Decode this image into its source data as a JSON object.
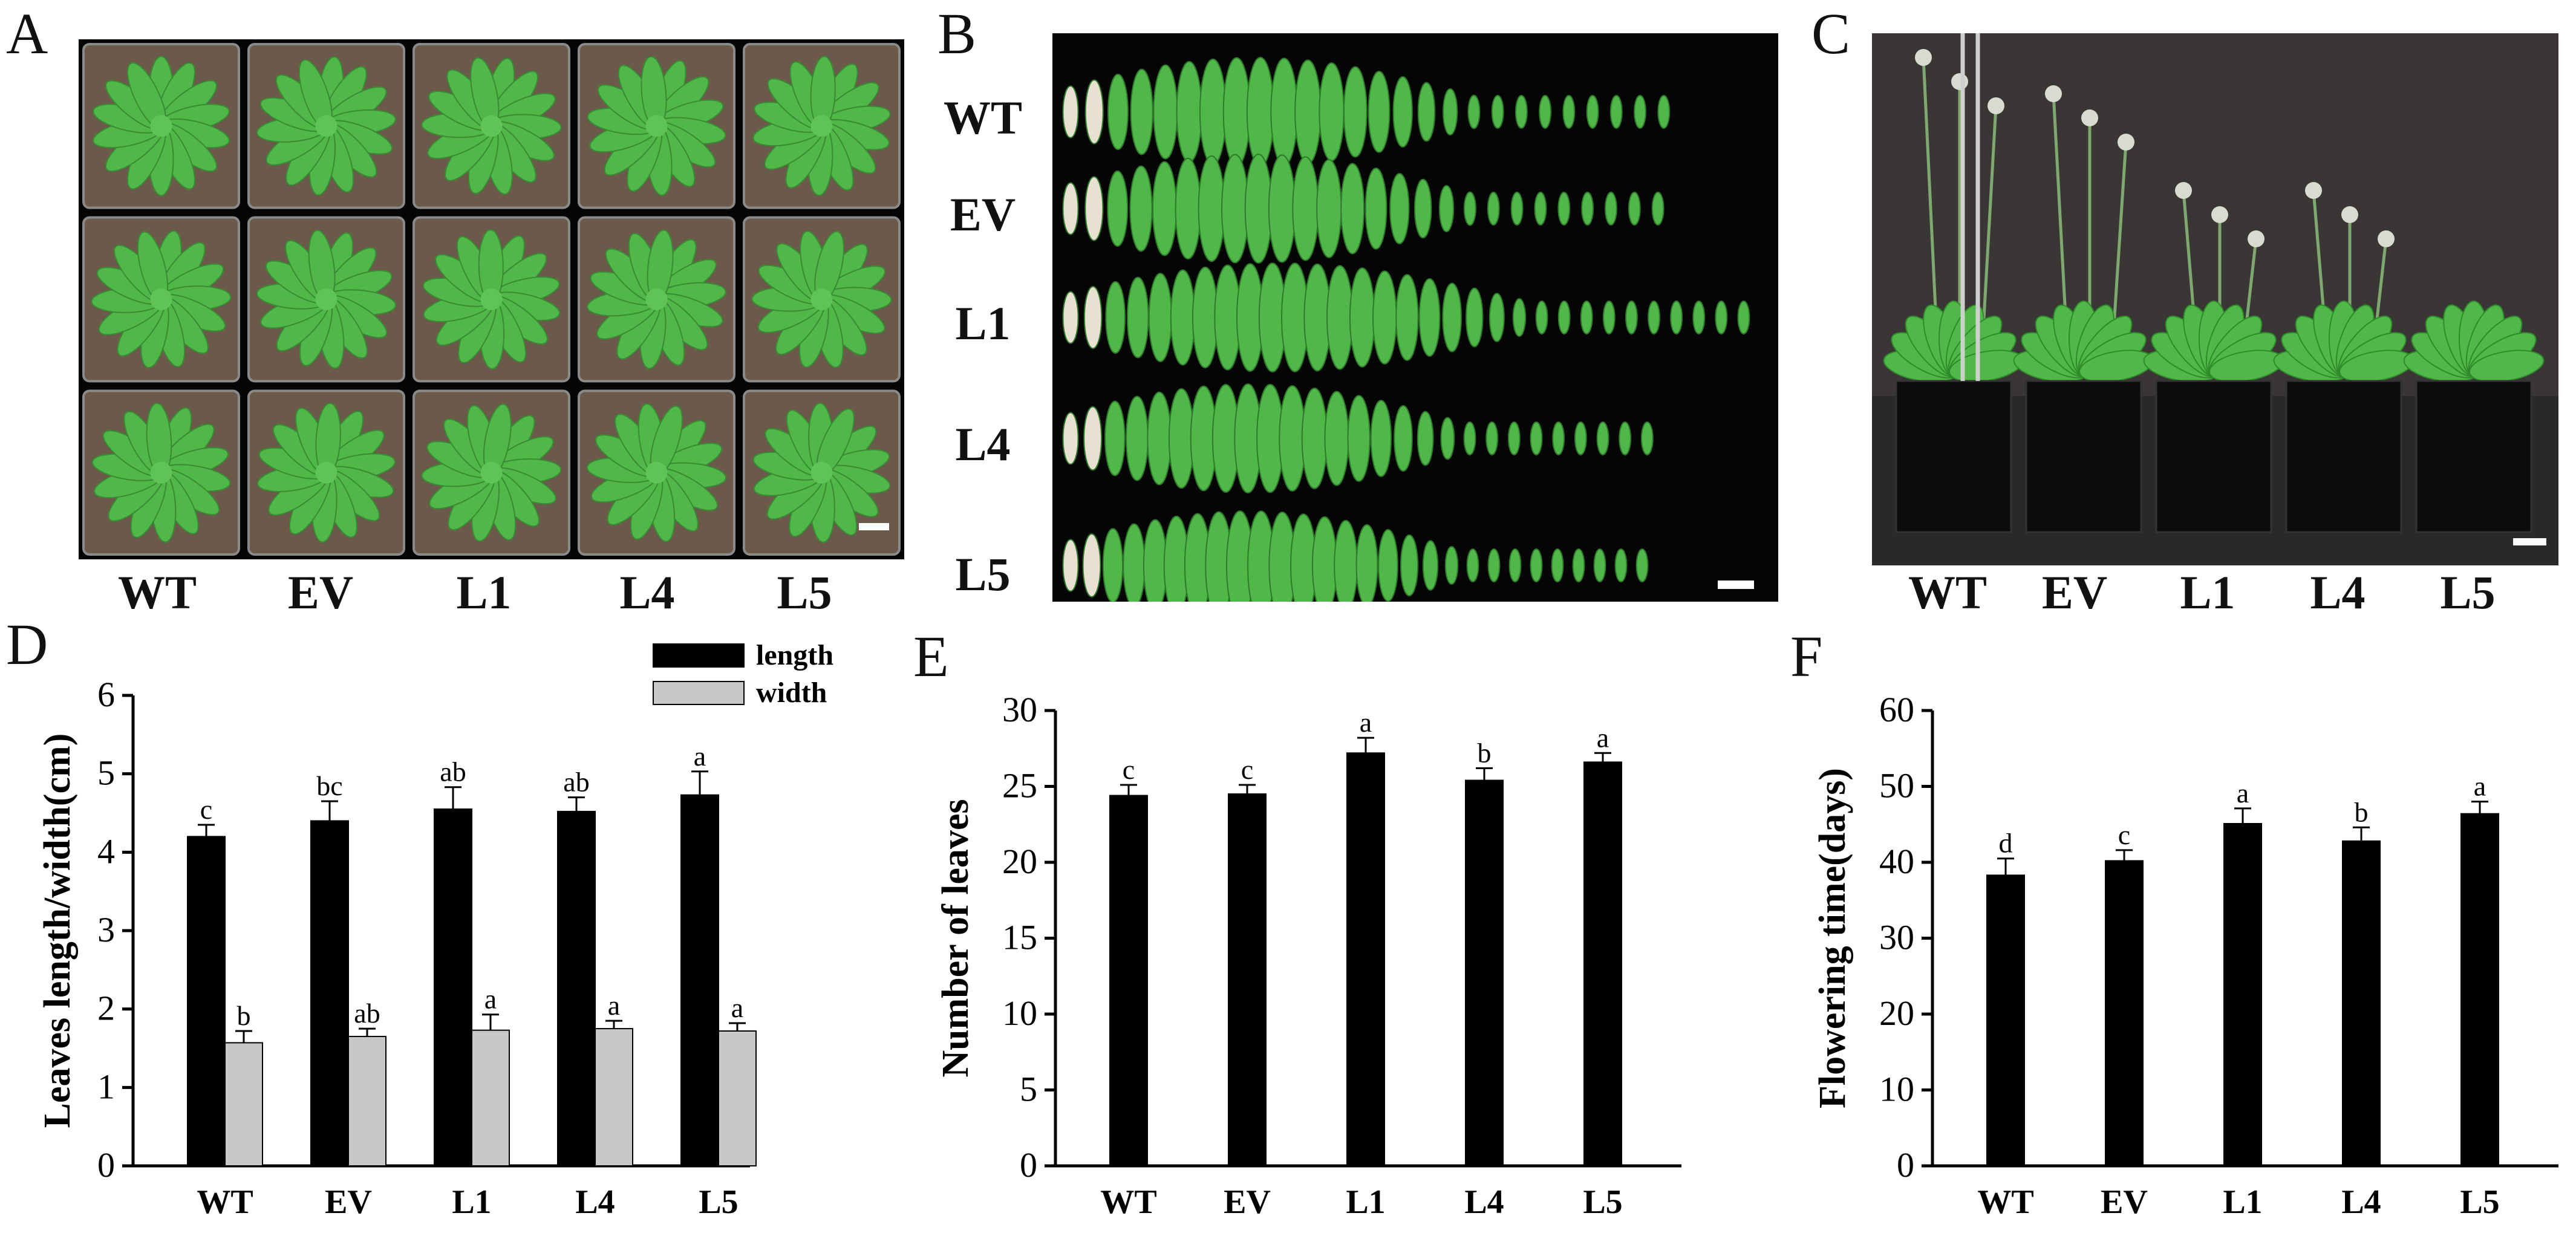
{
  "panels": {
    "A": "A",
    "B": "B",
    "C": "C",
    "D": "D",
    "E": "E",
    "F": "F"
  },
  "genotypes": [
    "WT",
    "EV",
    "L1",
    "L4",
    "L5"
  ],
  "colors": {
    "length_bar": "#000000",
    "width_bar": "#c8c8c8",
    "photo_bg": "#050505",
    "leaf_green": "#4fb848",
    "soil": "#6b5a4a",
    "backdrop": "#3a3636"
  },
  "chart_data": [
    {
      "panel": "D",
      "type": "bar",
      "categories": [
        "WT",
        "EV",
        "L1",
        "L4",
        "L5"
      ],
      "series": [
        {
          "name": "length",
          "values": [
            4.2,
            4.4,
            4.55,
            4.52,
            4.73
          ],
          "errors": [
            0.15,
            0.25,
            0.28,
            0.18,
            0.3
          ],
          "letters": [
            "c",
            "bc",
            "ab",
            "ab",
            "a"
          ]
        },
        {
          "name": "width",
          "values": [
            1.57,
            1.65,
            1.73,
            1.75,
            1.72
          ],
          "errors": [
            0.15,
            0.1,
            0.2,
            0.1,
            0.1
          ],
          "letters": [
            "b",
            "ab",
            "a",
            "a",
            "a"
          ]
        }
      ],
      "ylabel": "Leaves length/width(cm)",
      "ylim": [
        0,
        6
      ],
      "yticks": [
        0,
        1,
        2,
        3,
        4,
        5,
        6
      ],
      "legend_position": "top-right",
      "grid": false
    },
    {
      "panel": "E",
      "type": "bar",
      "categories": [
        "WT",
        "EV",
        "L1",
        "L4",
        "L5"
      ],
      "values": [
        24.4,
        24.5,
        27.2,
        25.4,
        26.6
      ],
      "errors": [
        0.7,
        0.6,
        1.0,
        0.8,
        0.6
      ],
      "letters": [
        "c",
        "c",
        "a",
        "b",
        "a"
      ],
      "ylabel": "Number of leaves",
      "ylim": [
        0,
        30
      ],
      "yticks": [
        0,
        5,
        10,
        15,
        20,
        25,
        30
      ],
      "grid": false
    },
    {
      "panel": "F",
      "type": "bar",
      "categories": [
        "WT",
        "EV",
        "L1",
        "L4",
        "L5"
      ],
      "values": [
        38.3,
        40.2,
        45.1,
        42.8,
        46.4
      ],
      "errors": [
        2.2,
        1.4,
        2.0,
        1.8,
        1.6
      ],
      "letters": [
        "d",
        "c",
        "a",
        "b",
        "a"
      ],
      "ylabel": "Flowering time(days)",
      "ylim": [
        0,
        60
      ],
      "yticks": [
        0,
        10,
        20,
        30,
        40,
        50,
        60
      ],
      "grid": false
    }
  ]
}
